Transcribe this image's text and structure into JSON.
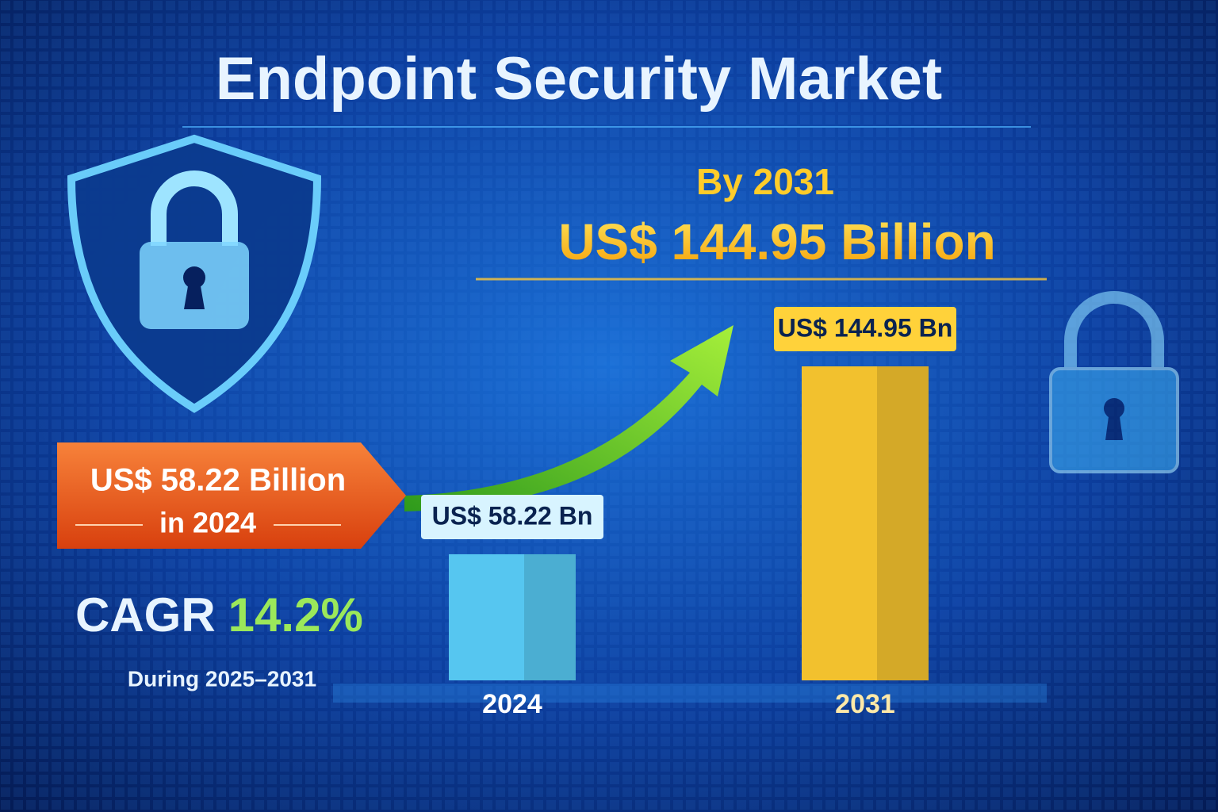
{
  "chart_data": {
    "type": "bar",
    "title": "Endpoint Security Market",
    "categories": [
      "2024",
      "2031"
    ],
    "values": [
      58.22,
      144.95
    ],
    "value_labels": [
      "US$ 58.22 Bn",
      "US$ 144.95 Bn"
    ],
    "colors": [
      "#56c6f0",
      "#f2c12e"
    ],
    "annotations": [
      "By 2031",
      "US$ 144.95 Billion",
      "US$ 58.22 Billion",
      "in 2024",
      "CAGR",
      "14.2%",
      "During 2025–2031"
    ]
  }
}
